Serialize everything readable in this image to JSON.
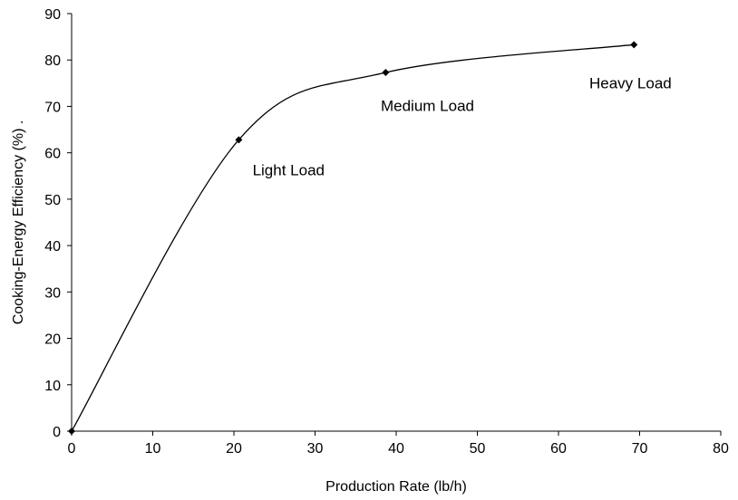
{
  "chart_data": {
    "type": "line",
    "xlabel": "Production Rate (lb/h)",
    "ylabel": "Cooking-Energy Efficiency (%)  .",
    "xlim": [
      0,
      80
    ],
    "ylim": [
      0,
      90
    ],
    "xticks": [
      0,
      10,
      20,
      30,
      40,
      50,
      60,
      70,
      80
    ],
    "yticks": [
      0,
      10,
      20,
      30,
      40,
      50,
      60,
      70,
      80,
      90
    ],
    "grid": false,
    "smooth": true,
    "series": [
      {
        "x": [
          0,
          20.6,
          38.7,
          69.3
        ],
        "y": [
          0,
          62.8,
          77.3,
          83.3
        ],
        "marker": "diamond",
        "color": "#000000"
      }
    ],
    "annotations": [
      {
        "text": "Light Load",
        "x": 22.3,
        "y": 55.2
      },
      {
        "text": "Medium Load",
        "x": 38.1,
        "y": 69.0
      },
      {
        "text": "Heavy Load",
        "x": 63.8,
        "y": 73.9
      }
    ]
  }
}
